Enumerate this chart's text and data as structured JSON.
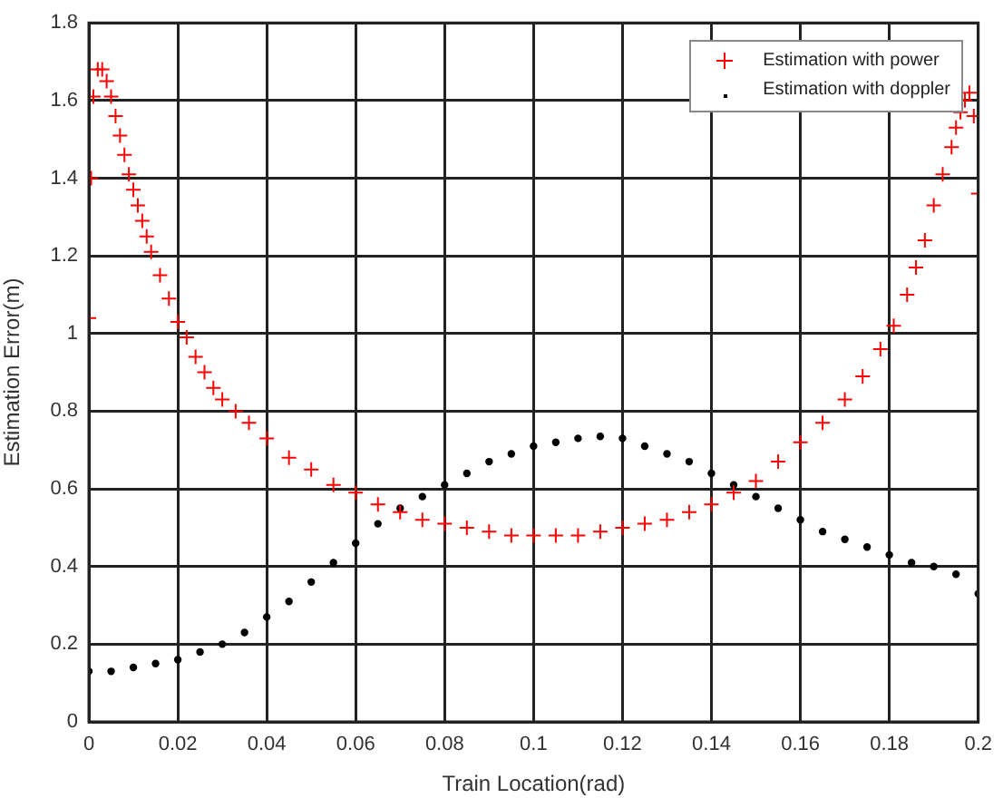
{
  "chart_data": {
    "type": "scatter",
    "xlabel": "Train Location(rad)",
    "ylabel": "Estimation Error(m)",
    "xlim": [
      0,
      0.2
    ],
    "xticks": [
      0,
      0.02,
      0.04,
      0.06,
      0.08,
      0.1,
      0.12,
      0.14,
      0.16,
      0.18,
      0.2
    ],
    "ylim": [
      0,
      1.8
    ],
    "yticks": [
      0,
      0.2,
      0.4,
      0.6,
      0.8,
      1,
      1.2,
      1.4,
      1.6,
      1.8
    ],
    "grid": true,
    "legend": "top right",
    "series": [
      {
        "name": "Estimation with power",
        "color": "#ff0000",
        "marker": "cross",
        "x": [
          0,
          0.0005,
          0.001,
          0.002,
          0.003,
          0.004,
          0.005,
          0.006,
          0.007,
          0.008,
          0.009,
          0.01,
          0.011,
          0.012,
          0.013,
          0.014,
          0.016,
          0.018,
          0.02,
          0.022,
          0.024,
          0.026,
          0.028,
          0.03,
          0.033,
          0.036,
          0.04,
          0.045,
          0.05,
          0.055,
          0.06,
          0.065,
          0.07,
          0.075,
          0.08,
          0.085,
          0.09,
          0.095,
          0.1,
          0.105,
          0.11,
          0.115,
          0.12,
          0.125,
          0.13,
          0.135,
          0.14,
          0.145,
          0.15,
          0.155,
          0.16,
          0.165,
          0.17,
          0.174,
          0.178,
          0.181,
          0.184,
          0.186,
          0.188,
          0.19,
          0.192,
          0.194,
          0.195,
          0.196,
          0.197,
          0.198,
          0.199,
          0.2
        ],
        "values": [
          1.04,
          1.4,
          1.61,
          1.68,
          1.68,
          1.65,
          1.61,
          1.56,
          1.51,
          1.46,
          1.41,
          1.37,
          1.33,
          1.29,
          1.25,
          1.21,
          1.15,
          1.09,
          1.03,
          0.99,
          0.94,
          0.9,
          0.86,
          0.83,
          0.8,
          0.77,
          0.73,
          0.68,
          0.65,
          0.61,
          0.59,
          0.56,
          0.54,
          0.52,
          0.51,
          0.5,
          0.49,
          0.48,
          0.48,
          0.48,
          0.48,
          0.49,
          0.5,
          0.51,
          0.52,
          0.54,
          0.56,
          0.59,
          0.62,
          0.67,
          0.72,
          0.77,
          0.83,
          0.89,
          0.96,
          1.02,
          1.1,
          1.17,
          1.24,
          1.33,
          1.41,
          1.48,
          1.53,
          1.57,
          1.6,
          1.62,
          1.56,
          1.36
        ]
      },
      {
        "name": "Estimation with doppler",
        "color": "#000000",
        "marker": "circle",
        "x": [
          0,
          0.005,
          0.01,
          0.015,
          0.02,
          0.025,
          0.03,
          0.035,
          0.04,
          0.045,
          0.05,
          0.055,
          0.06,
          0.065,
          0.07,
          0.075,
          0.08,
          0.085,
          0.09,
          0.095,
          0.1,
          0.105,
          0.11,
          0.115,
          0.12,
          0.125,
          0.13,
          0.135,
          0.14,
          0.145,
          0.15,
          0.155,
          0.16,
          0.165,
          0.17,
          0.175,
          0.18,
          0.185,
          0.19,
          0.195,
          0.2
        ],
        "values": [
          0.13,
          0.13,
          0.14,
          0.15,
          0.16,
          0.18,
          0.2,
          0.23,
          0.27,
          0.31,
          0.36,
          0.41,
          0.46,
          0.51,
          0.55,
          0.58,
          0.61,
          0.64,
          0.67,
          0.69,
          0.71,
          0.72,
          0.73,
          0.735,
          0.73,
          0.71,
          0.69,
          0.67,
          0.64,
          0.61,
          0.58,
          0.55,
          0.52,
          0.49,
          0.47,
          0.45,
          0.43,
          0.41,
          0.4,
          0.38,
          0.33
        ]
      }
    ]
  }
}
